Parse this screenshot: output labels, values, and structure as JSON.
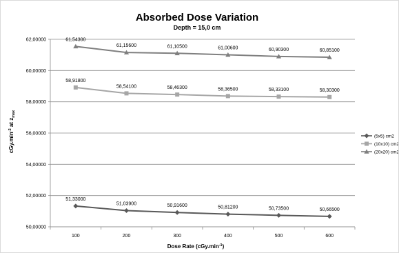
{
  "chart_data": {
    "type": "line",
    "title": "Absorbed Dose Variation",
    "subtitle": "Depth = 15,0 cm",
    "xlabel": "Dose Rate (cGy.min",
    "xlabel_sup": "-1",
    "xlabel_end": ")",
    "ylabel": "cGy.min",
    "ylabel_sup": "-2",
    "ylabel_mid": " at z",
    "ylabel_sub": "max",
    "categories": [
      "100",
      "200",
      "300",
      "400",
      "500",
      "600"
    ],
    "ylim": [
      50,
      62
    ],
    "yticks": [
      "50,00000",
      "52,00000",
      "54,00000",
      "56,00000",
      "58,00000",
      "60,00000",
      "62,00000"
    ],
    "grid": true,
    "legend_position": "right",
    "series": [
      {
        "name": "(5x5) cm2",
        "marker": "diamond",
        "color": "#595959",
        "values": [
          51.33,
          51.039,
          50.916,
          50.812,
          50.735,
          50.665
        ],
        "labels": [
          "51,33000",
          "51,03900",
          "50,91600",
          "50,81200",
          "50,73500",
          "50,66500"
        ]
      },
      {
        "name": "(10x10) cm2",
        "marker": "square",
        "color": "#a6a6a6",
        "values": [
          58.918,
          58.541,
          58.463,
          58.365,
          58.331,
          58.303
        ],
        "labels": [
          "58,91800",
          "58,54100",
          "58,46300",
          "58,36500",
          "58,33100",
          "58,30300"
        ]
      },
      {
        "name": "(20x20) cm2",
        "marker": "triangle",
        "color": "#7f7f7f",
        "values": [
          61.543,
          61.156,
          61.105,
          61.006,
          60.903,
          60.851
        ],
        "labels": [
          "61,54300",
          "61,15600",
          "61,10500",
          "61,00600",
          "60,90300",
          "60,85100"
        ]
      }
    ]
  }
}
